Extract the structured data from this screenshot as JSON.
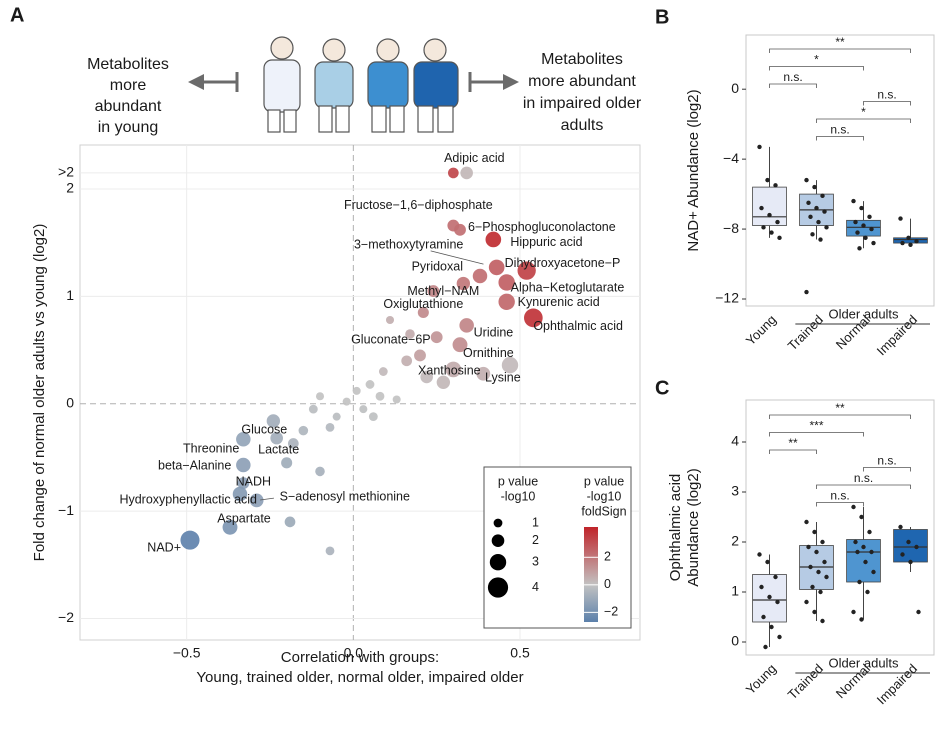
{
  "chart_data": [
    {
      "type": "scatter",
      "panel": "A",
      "annotations": {
        "left": [
          "Metabolites",
          "more",
          "abundant",
          "in young"
        ],
        "right": [
          "Metabolites",
          "more abundant",
          "in impaired older",
          "adults"
        ]
      },
      "xlabel": [
        "Correlation with groups:",
        "Young, trained older, normal older, impaired older"
      ],
      "ylabel": "Fold change of normal older adults vs young (log2)",
      "xlim": [
        -0.82,
        0.86
      ],
      "ylim": [
        -2.2,
        2.41
      ],
      "xticks": [
        {
          "value": -0.5,
          "label": "−0.5"
        },
        {
          "value": 0,
          "label": "0.0"
        },
        {
          "value": 0.5,
          "label": "0.5"
        }
      ],
      "yticks": [
        {
          "value": -2,
          "label": "−2"
        },
        {
          "value": -1,
          "label": "−1"
        },
        0,
        1,
        2,
        {
          "value": 2.15,
          "label": ">2"
        }
      ],
      "grid": true,
      "zero_lines": true,
      "x": [
        0.3,
        0.34,
        0.3,
        0.32,
        0.42,
        0.43,
        0.52,
        0.38,
        0.46,
        0.33,
        0.46,
        0.21,
        0.54,
        0.34,
        0.25,
        0.32,
        0.3,
        0.47,
        -0.24,
        -0.33,
        -0.23,
        -0.33,
        -0.33,
        -0.34,
        -0.29,
        -0.37,
        -0.49,
        0.24,
        0.17,
        0.11,
        0.16,
        0.2,
        0.22,
        0.27,
        0.39,
        0.09,
        0.05,
        0.08,
        -0.02,
        0.03,
        -0.05,
        0.06,
        -0.1,
        -0.12,
        -0.07,
        -0.15,
        -0.18,
        -0.2,
        -0.1,
        -0.19,
        -0.07,
        0.13,
        0.01
      ],
      "y": [
        2.15,
        2.15,
        1.66,
        1.62,
        1.53,
        1.27,
        1.24,
        1.19,
        1.13,
        1.12,
        0.95,
        0.85,
        0.8,
        0.73,
        0.62,
        0.55,
        0.32,
        0.36,
        -0.16,
        -0.33,
        -0.32,
        -0.57,
        -0.74,
        -0.84,
        -0.9,
        -1.15,
        -1.27,
        1.05,
        0.65,
        0.78,
        0.4,
        0.45,
        0.25,
        0.2,
        0.28,
        0.3,
        0.18,
        0.07,
        0.02,
        -0.05,
        -0.12,
        -0.12,
        0.07,
        -0.05,
        -0.22,
        -0.25,
        -0.37,
        -0.55,
        -0.63,
        -1.1,
        -1.37,
        0.04,
        0.12
      ],
      "sizes": [
        1.5,
        2,
        1.8,
        1.8,
        2.8,
        2.8,
        3.5,
        2.5,
        3,
        2.2,
        3,
        1.6,
        3.6,
        2.5,
        1.8,
        2.6,
        2.8,
        3,
        2.2,
        2.5,
        2,
        2.5,
        1.8,
        2.5,
        2.3,
        2.6,
        3.7,
        1.8,
        1.2,
        0.8,
        1.5,
        1.8,
        2,
        2.2,
        2.3,
        1,
        1,
        1,
        0.8,
        0.8,
        0.8,
        1,
        0.8,
        1,
        1,
        1.2,
        1.5,
        1.6,
        1.2,
        1.5,
        1,
        0.8,
        0.8
      ],
      "fold_sign": [
        3.3,
        0.3,
        2.2,
        2.2,
        4,
        2.6,
        3.4,
        2.2,
        2.6,
        2,
        2.4,
        1.5,
        3.8,
        1.6,
        1.2,
        1.4,
        0.6,
        0.2,
        -0.8,
        -1.2,
        -0.8,
        -1.4,
        -1.4,
        -1.6,
        -1.4,
        -1.8,
        -2.6,
        1.6,
        0.6,
        0.5,
        0.5,
        0.9,
        0.2,
        0.3,
        0.5,
        0.2,
        0,
        0,
        0,
        -0.1,
        -0.2,
        -0.1,
        0,
        -0.2,
        -0.4,
        -0.5,
        -0.6,
        -0.9,
        -0.7,
        -1,
        -0.6,
        0,
        0
      ],
      "labels": [
        "Adipic acid",
        null,
        "Fructose−1,6−diphosphate",
        "6−Phosphogluconolactone",
        "Hippuric acid",
        "3−methoxytyramine",
        "Dihydroxyacetone−P",
        "Pyridoxal",
        "Alpha−Ketoglutarate",
        "Methyl−NAM",
        "Kynurenic acid",
        "Oxiglutathione",
        "Ophthalmic acid",
        "Uridine",
        "Gluconate−6P",
        "Ornithine",
        "Xanthosine",
        "Lysine",
        "Glucose",
        "Threonine",
        "Lactate",
        "beta−Alanine",
        "NADH",
        "Hydroxyphenyllactic acid",
        "S−adenosyl methionine",
        "Aspartate",
        "NAD+",
        null,
        null,
        null,
        null,
        null,
        null,
        null,
        null,
        null,
        null,
        null,
        null,
        null,
        null,
        null,
        null,
        null,
        null,
        null,
        null,
        null,
        null,
        null,
        null,
        null,
        null
      ],
      "legend_position": "lower right",
      "size_legend": {
        "title": [
          "p value",
          "-log10"
        ],
        "values": [
          1,
          2,
          3,
          4
        ]
      },
      "color_legend": {
        "title": [
          "p value",
          "-log10",
          "foldSign"
        ],
        "ticks": [
          2,
          0,
          {
            "value": -2,
            "label": "−2"
          }
        ]
      },
      "color_lim": [
        -2.7,
        4.2
      ],
      "colors": [
        "#5b80ab",
        "#c2c2c2",
        "#c0242a"
      ]
    },
    {
      "type": "box",
      "panel": "B",
      "ylabel": [
        "NAD+ Abundance (log2)"
      ],
      "categories": [
        "Young",
        "Trained",
        "Normal",
        "Impaired"
      ],
      "group_label": "Older adults",
      "colors": [
        "#e6eaf6",
        "#b6cbe4",
        "#4f95d0",
        "#1f66b0"
      ],
      "ylim": [
        -12.4,
        3.1
      ],
      "yticks": [
        {
          "value": -12,
          "label": "−12"
        },
        {
          "value": -8,
          "label": "−8"
        },
        {
          "value": -4,
          "label": "−4"
        },
        0
      ],
      "boxes": [
        {
          "whisker_low": -8.5,
          "q1": -7.8,
          "median": -7.3,
          "q3": -5.6,
          "whisker_high": -3.3,
          "points": [
            -3.3,
            -5.2,
            -5.5,
            -6.8,
            -7.2,
            -7.6,
            -7.9,
            -8.2,
            -8.5
          ]
        },
        {
          "whisker_low": -8.6,
          "q1": -7.8,
          "median": -6.9,
          "q3": -6.0,
          "whisker_high": -5.2,
          "points": [
            -5.2,
            -5.6,
            -6.1,
            -6.5,
            -6.8,
            -7.0,
            -7.3,
            -7.6,
            -7.9,
            -8.3,
            -8.6,
            -11.6
          ]
        },
        {
          "whisker_low": -9.1,
          "q1": -8.4,
          "median": -7.9,
          "q3": -7.5,
          "whisker_high": -6.4,
          "points": [
            -6.4,
            -6.8,
            -7.3,
            -7.6,
            -7.8,
            -8.0,
            -8.2,
            -8.5,
            -8.8,
            -9.1
          ]
        },
        {
          "whisker_low": -8.9,
          "q1": -8.8,
          "median": -8.6,
          "q3": -8.5,
          "whisker_high": -7.4,
          "points": [
            -7.4,
            -8.5,
            -8.7,
            -8.8,
            -8.9
          ]
        }
      ],
      "comparisons": [
        {
          "pair": [
            0,
            3
          ],
          "label": "**"
        },
        {
          "pair": [
            0,
            2
          ],
          "label": "*"
        },
        {
          "pair": [
            0,
            1
          ],
          "label": "n.s."
        },
        {
          "pair": [
            2,
            3
          ],
          "label": "n.s."
        },
        {
          "pair": [
            1,
            3
          ],
          "label": "*"
        },
        {
          "pair": [
            1,
            2
          ],
          "label": "n.s."
        }
      ]
    },
    {
      "type": "box",
      "panel": "C",
      "ylabel": [
        "Ophthalmic acid",
        "Abundance (log2)"
      ],
      "categories": [
        "Young",
        "Trained",
        "Normal",
        "Impaired"
      ],
      "group_label": "Older adults",
      "colors": [
        "#e6eaf6",
        "#b6cbe4",
        "#4f95d0",
        "#1f66b0"
      ],
      "ylim": [
        -0.26,
        4.84
      ],
      "yticks": [
        0,
        1,
        2,
        3,
        4
      ],
      "boxes": [
        {
          "whisker_low": -0.1,
          "q1": 0.4,
          "median": 0.84,
          "q3": 1.35,
          "whisker_high": 1.75,
          "points": [
            1.75,
            1.6,
            1.3,
            1.1,
            0.9,
            0.8,
            0.5,
            0.3,
            0.1,
            -0.1
          ]
        },
        {
          "whisker_low": 0.42,
          "q1": 1.05,
          "median": 1.5,
          "q3": 1.93,
          "whisker_high": 2.4,
          "points": [
            2.4,
            2.2,
            2.0,
            1.9,
            1.8,
            1.6,
            1.5,
            1.4,
            1.3,
            1.1,
            1.0,
            0.8,
            0.6,
            0.42
          ]
        },
        {
          "whisker_low": 0.45,
          "q1": 1.2,
          "median": 1.8,
          "q3": 2.05,
          "whisker_high": 2.7,
          "points": [
            2.7,
            2.5,
            2.2,
            2.0,
            1.9,
            1.8,
            1.8,
            1.6,
            1.4,
            1.2,
            1.0,
            0.6,
            0.45
          ]
        },
        {
          "whisker_low": 1.4,
          "q1": 1.6,
          "median": 1.9,
          "q3": 2.25,
          "whisker_high": 2.3,
          "points": [
            2.3,
            2.0,
            1.9,
            1.75,
            1.6,
            0.6
          ]
        }
      ],
      "comparisons": [
        {
          "pair": [
            0,
            3
          ],
          "label": "**"
        },
        {
          "pair": [
            0,
            2
          ],
          "label": "***"
        },
        {
          "pair": [
            0,
            1
          ],
          "label": "**"
        },
        {
          "pair": [
            2,
            3
          ],
          "label": "n.s."
        },
        {
          "pair": [
            1,
            3
          ],
          "label": "n.s."
        },
        {
          "pair": [
            1,
            2
          ],
          "label": "n.s."
        }
      ]
    }
  ]
}
